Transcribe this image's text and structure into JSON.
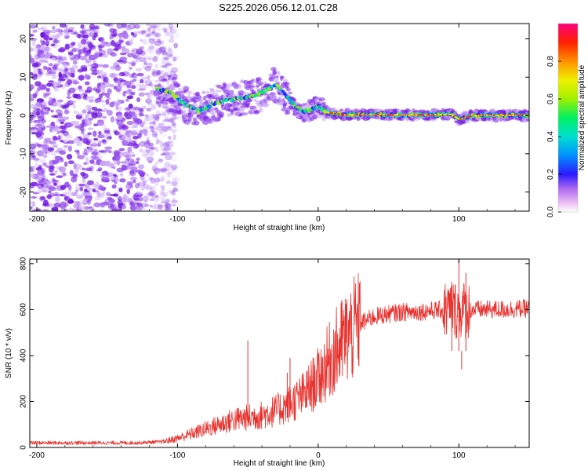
{
  "title": "S225.2026.056.12.01.C28",
  "colors": {
    "snr_line": "#e8322e",
    "spectrogram_base": "#7a1fe6",
    "spectrogram_light": "#c9a8f2",
    "trace_ridge": "#e8322e"
  },
  "chart_data": [
    {
      "type": "heatmap",
      "title": "S225.2026.056.12.01.C28",
      "xlabel": "Height of straight line (km)",
      "ylabel": "Frequency (Hz)",
      "xlim": [
        -205,
        150
      ],
      "ylim": [
        -25,
        24
      ],
      "xticks": [
        -200,
        -100,
        0,
        100
      ],
      "yticks": [
        -20,
        -10,
        0,
        10,
        20
      ],
      "xtick_labels": [
        "-200",
        "-100",
        "0",
        "100"
      ],
      "ytick_labels": [
        "-20",
        "-10",
        "0",
        "10",
        "20"
      ],
      "colorbar": {
        "label": "Normalized spectral amplitude",
        "range": [
          0,
          1
        ],
        "ticks": [
          0.0,
          0.2,
          0.4,
          0.6,
          0.8
        ],
        "tick_labels": [
          "0.0",
          "0.2",
          "0.4",
          "0.6",
          "0.8"
        ]
      },
      "ridge": {
        "x": [
          -115,
          -105,
          -95,
          -85,
          -75,
          -65,
          -55,
          -45,
          -35,
          -30,
          -25,
          -20,
          -15,
          -10,
          -5,
          0,
          5,
          10,
          20,
          40,
          60,
          80,
          95,
          100,
          110,
          150
        ],
        "y": [
          7,
          6,
          3,
          1,
          3,
          4,
          4.5,
          5,
          7,
          8,
          6,
          4,
          2,
          1,
          1.5,
          2.5,
          1,
          0.5,
          0.2,
          0.3,
          0.1,
          0.2,
          0.3,
          -1.0,
          0.0,
          0.0
        ]
      },
      "noise_region": {
        "x": [
          -205,
          -110
        ],
        "y": [
          -25,
          24
        ]
      }
    },
    {
      "type": "line",
      "xlabel": "Height of straight line (km)",
      "ylabel": "SNR (10 * v/v)",
      "xlim": [
        -205,
        150
      ],
      "ylim": [
        0,
        820
      ],
      "xticks": [
        -200,
        -100,
        0,
        100
      ],
      "yticks": [
        0,
        200,
        400,
        600,
        800
      ],
      "xtick_labels": [
        "-200",
        "-100",
        "0",
        "100"
      ],
      "ytick_labels": [
        "0",
        "200",
        "400",
        "600",
        "800"
      ],
      "envelope": {
        "x": [
          -205,
          -130,
          -110,
          -100,
          -90,
          -80,
          -70,
          -60,
          -50,
          -40,
          -30,
          -20,
          -10,
          0,
          10,
          20,
          30,
          40,
          50,
          60,
          70,
          80,
          90,
          100,
          110,
          120,
          130,
          150
        ],
        "y": [
          20,
          20,
          25,
          40,
          60,
          80,
          100,
          120,
          130,
          140,
          160,
          190,
          230,
          300,
          400,
          480,
          540,
          570,
          580,
          590,
          590,
          595,
          600,
          600,
          600,
          600,
          600,
          605
        ]
      },
      "spikes": [
        {
          "x": -50,
          "y": 465
        },
        {
          "x": -22,
          "y": 325
        },
        {
          "x": -20,
          "y": 390
        },
        {
          "x": 7,
          "y": 430
        },
        {
          "x": 15,
          "y": 450
        },
        {
          "x": 95,
          "y": 720
        },
        {
          "x": 100,
          "y": 820
        },
        {
          "x": 102,
          "y": 340
        },
        {
          "x": 105,
          "y": 760
        }
      ]
    }
  ]
}
